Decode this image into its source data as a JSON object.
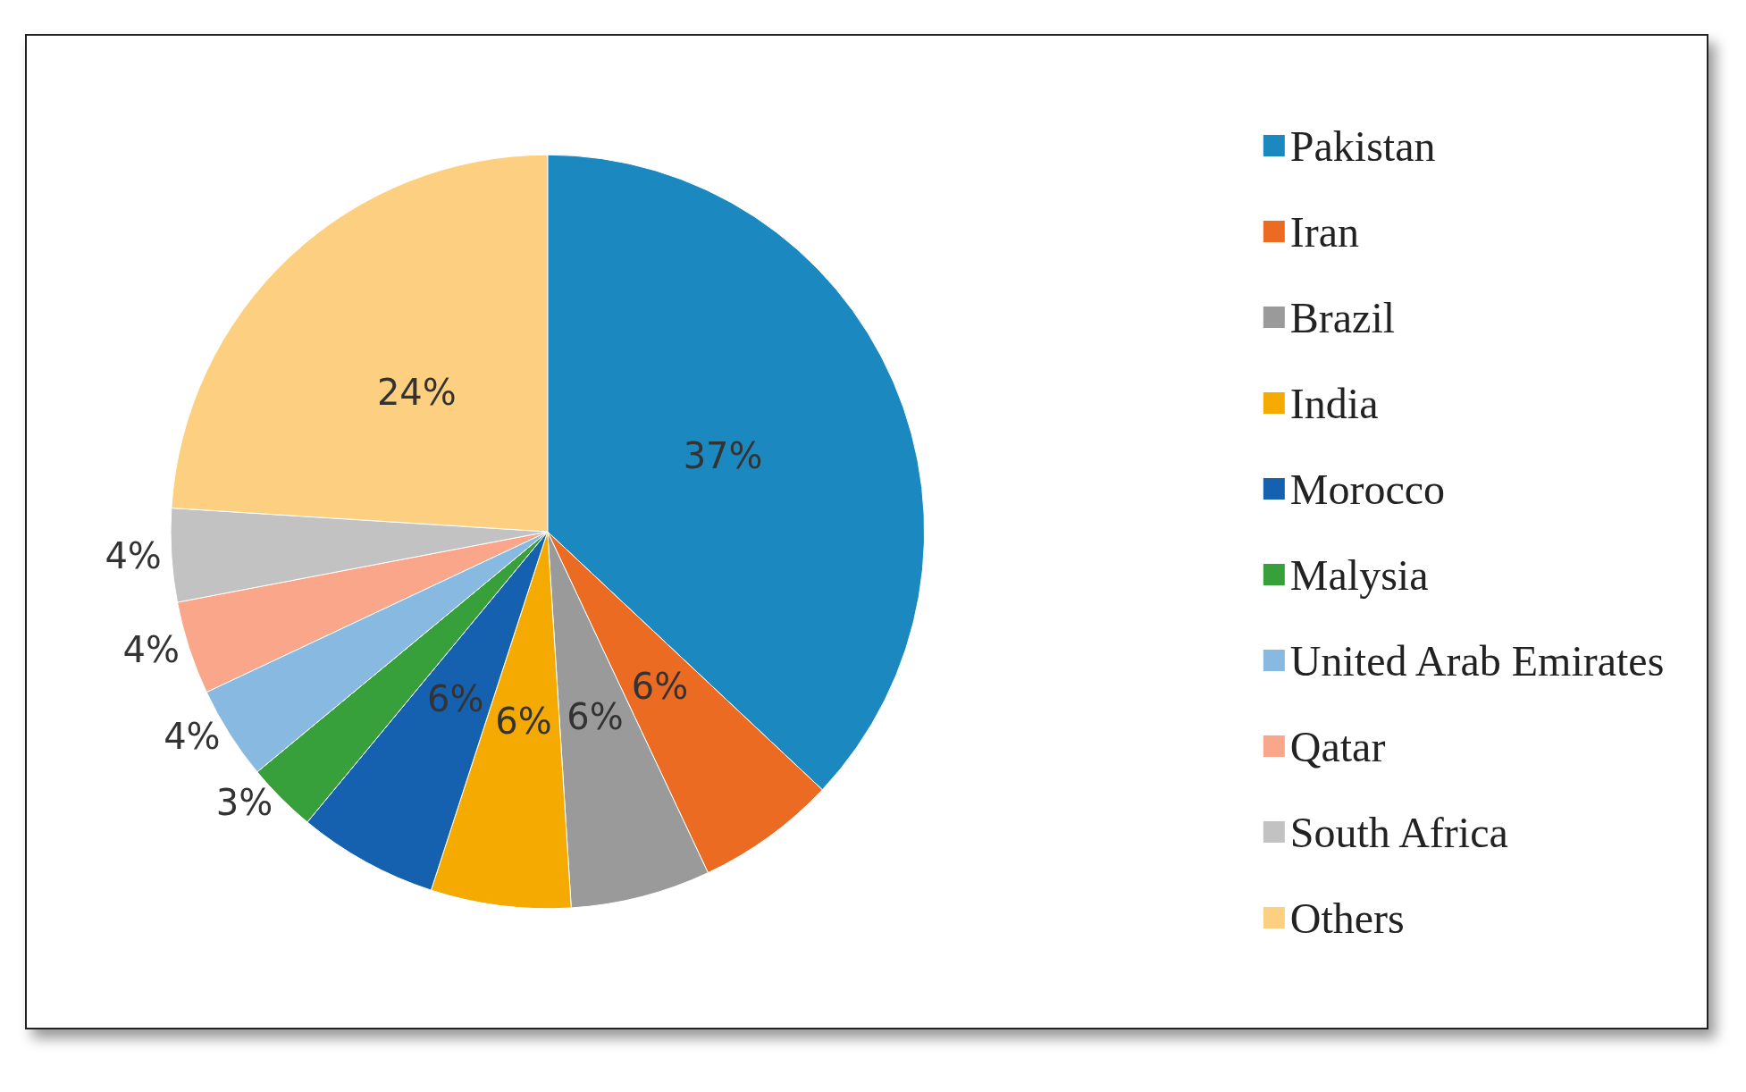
{
  "chart_data": {
    "type": "pie",
    "categories": [
      "Pakistan",
      "Iran",
      "Brazil",
      "India",
      "Morocco",
      "Malysia",
      "United Arab Emirates",
      "Qatar",
      "South Africa",
      "Others"
    ],
    "values": [
      37,
      6,
      6,
      6,
      6,
      3,
      4,
      4,
      4,
      24
    ],
    "value_labels": [
      "37%",
      "6%",
      "6%",
      "6%",
      "6%",
      "3%",
      "4%",
      "4%",
      "4%",
      "24%"
    ],
    "colors": [
      "#1b88c0",
      "#ec6b23",
      "#9a9a9a",
      "#f4aa00",
      "#1660b0",
      "#38a03a",
      "#88b9e0",
      "#f9a68a",
      "#c2c2c2",
      "#fdd081"
    ],
    "legend": "right"
  }
}
